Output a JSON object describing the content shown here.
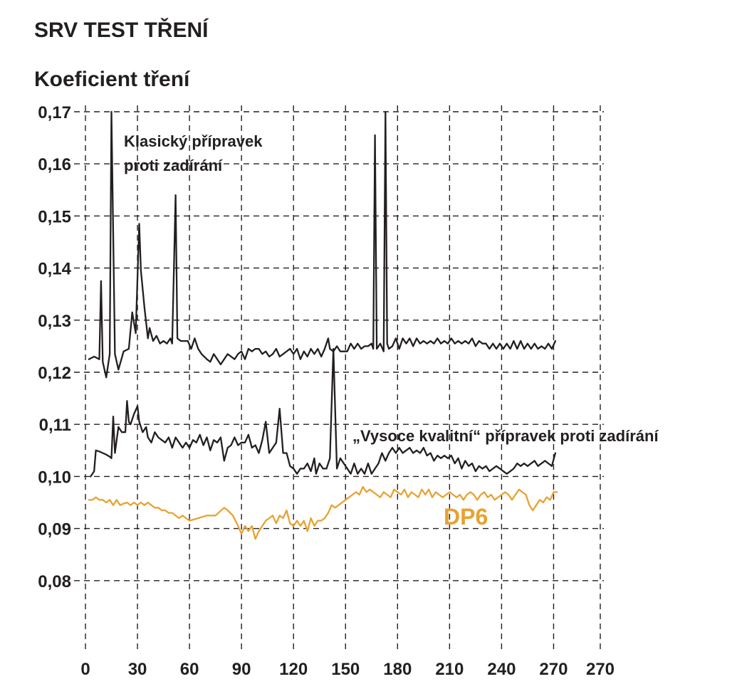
{
  "chart_data": {
    "type": "line",
    "title": "SRV TEST TŘENÍ",
    "ylabel": "Koeficient tření",
    "xlabel": "",
    "xlim": [
      0,
      272
    ],
    "ylim": [
      0.07,
      0.17
    ],
    "x_ticks": [
      "0",
      "30",
      "60",
      "90",
      "120",
      "150",
      "180",
      "210",
      "240",
      "270",
      "270"
    ],
    "y_ticks": [
      "0,17",
      "0,16",
      "0,15",
      "0,14",
      "0,13",
      "0,12",
      "0,11",
      "0,10",
      "0,09",
      "0,08"
    ],
    "grid": true,
    "colors": {
      "classic": "#231f20",
      "high_quality": "#231f20",
      "dp6": "#e8a231"
    },
    "annotations": {
      "classic": [
        "Klasický přípravek",
        "proti zadírání"
      ],
      "high_quality": "„Vysoce kvalitní“ přípravek proti zadírání",
      "dp6": "DP6"
    },
    "series": [
      {
        "x": [
          2,
          5,
          8,
          9,
          10,
          12,
          14,
          15,
          17,
          19,
          22,
          25,
          27,
          29,
          31,
          32,
          34,
          36,
          37,
          39,
          41,
          43,
          45,
          47,
          49,
          50,
          52,
          53,
          55,
          57,
          59,
          61,
          63,
          65,
          67,
          70,
          72,
          74,
          76,
          78,
          80,
          82,
          84,
          86,
          88,
          90,
          92,
          94,
          96,
          98,
          100,
          102,
          104,
          106,
          108,
          110,
          112,
          114,
          116,
          118,
          120,
          122,
          124,
          126,
          128,
          130,
          132,
          134,
          136,
          138,
          140,
          141,
          143,
          145,
          147,
          149,
          151,
          153,
          155,
          157,
          159,
          161,
          163,
          165,
          166,
          167,
          168,
          170,
          172,
          173,
          174,
          175,
          177,
          179,
          181,
          183,
          185,
          187,
          189,
          191,
          193,
          195,
          197,
          199,
          201,
          203,
          205,
          207,
          209,
          211,
          213,
          215,
          217,
          219,
          221,
          223,
          225,
          227,
          229,
          231,
          233,
          235,
          237,
          239,
          241,
          243,
          245,
          247,
          249,
          251,
          253,
          255,
          257,
          259,
          261,
          263,
          265,
          267,
          269,
          271
        ],
        "y": [
          0.1225,
          0.123,
          0.1225,
          0.1375,
          0.122,
          0.119,
          0.1235,
          0.17,
          0.1235,
          0.1205,
          0.124,
          0.1245,
          0.1315,
          0.1275,
          0.1485,
          0.1395,
          0.1325,
          0.1265,
          0.1285,
          0.126,
          0.127,
          0.1255,
          0.126,
          0.1255,
          0.1265,
          0.1255,
          0.154,
          0.1265,
          0.126,
          0.126,
          0.126,
          0.1245,
          0.1265,
          0.1245,
          0.1235,
          0.1225,
          0.122,
          0.1235,
          0.1225,
          0.1215,
          0.1225,
          0.1235,
          0.123,
          0.1225,
          0.1235,
          0.124,
          0.1225,
          0.1245,
          0.124,
          0.1245,
          0.1245,
          0.1235,
          0.124,
          0.123,
          0.1235,
          0.1245,
          0.123,
          0.1235,
          0.124,
          0.1245,
          0.1235,
          0.1245,
          0.1225,
          0.124,
          0.123,
          0.1245,
          0.1235,
          0.1245,
          0.123,
          0.1245,
          0.1265,
          0.1245,
          0.124,
          0.125,
          0.124,
          0.124,
          0.124,
          0.1255,
          0.1245,
          0.1255,
          0.1245,
          0.125,
          0.125,
          0.1255,
          0.1245,
          0.1655,
          0.1245,
          0.1255,
          0.124,
          0.17,
          0.1255,
          0.1245,
          0.125,
          0.1265,
          0.1245,
          0.1265,
          0.1255,
          0.1265,
          0.125,
          0.1265,
          0.1255,
          0.126,
          0.1255,
          0.126,
          0.1255,
          0.1265,
          0.1255,
          0.126,
          0.1255,
          0.1265,
          0.1255,
          0.126,
          0.1255,
          0.126,
          0.1255,
          0.1265,
          0.125,
          0.126,
          0.1255,
          0.1255,
          0.1245,
          0.1255,
          0.1245,
          0.1255,
          0.1245,
          0.1255,
          0.1245,
          0.126,
          0.1245,
          0.126,
          0.1245,
          0.1255,
          0.1245,
          0.1255,
          0.1245,
          0.125,
          0.1245,
          0.1255,
          0.1245,
          0.126
        ]
      },
      {
        "x": [
          3,
          5,
          6,
          8,
          10,
          12,
          14,
          15,
          16,
          17,
          19,
          21,
          23,
          24,
          25,
          26,
          28,
          30,
          31,
          33,
          35,
          36,
          38,
          40,
          42,
          44,
          46,
          48,
          50,
          52,
          54,
          56,
          58,
          60,
          62,
          64,
          66,
          68,
          70,
          72,
          74,
          76,
          78,
          80,
          82,
          84,
          86,
          88,
          90,
          92,
          94,
          96,
          98,
          100,
          102,
          104,
          106,
          108,
          110,
          112,
          114,
          116,
          118,
          120,
          122,
          124,
          126,
          128,
          130,
          132,
          133,
          135,
          137,
          139,
          141,
          143,
          145,
          147,
          149,
          151,
          153,
          155,
          157,
          159,
          161,
          163,
          165,
          167,
          169,
          171,
          173,
          175,
          177,
          179,
          181,
          183,
          185,
          187,
          189,
          191,
          193,
          195,
          197,
          199,
          201,
          203,
          205,
          207,
          209,
          211,
          213,
          215,
          217,
          219,
          221,
          223,
          225,
          227,
          229,
          231,
          233,
          235,
          237,
          239,
          241,
          243,
          245,
          247,
          249,
          251,
          253,
          255,
          257,
          259,
          261,
          263,
          265,
          267,
          269,
          271
        ],
        "y": [
          0.1,
          0.101,
          0.105,
          0.1048,
          0.1045,
          0.1042,
          0.1038,
          0.1035,
          0.1115,
          0.1045,
          0.1095,
          0.1085,
          0.1085,
          0.1145,
          0.1105,
          0.11,
          0.112,
          0.1135,
          0.1105,
          0.1085,
          0.1095,
          0.1075,
          0.1065,
          0.1085,
          0.1075,
          0.107,
          0.1065,
          0.1075,
          0.1055,
          0.1075,
          0.1065,
          0.1055,
          0.1065,
          0.1055,
          0.107,
          0.1065,
          0.108,
          0.106,
          0.1075,
          0.105,
          0.107,
          0.1065,
          0.1075,
          0.103,
          0.1055,
          0.106,
          0.1075,
          0.106,
          0.1065,
          0.1065,
          0.108,
          0.1055,
          0.106,
          0.1045,
          0.107,
          0.1105,
          0.1045,
          0.1055,
          0.1065,
          0.113,
          0.1045,
          0.1045,
          0.102,
          0.1015,
          0.1005,
          0.1015,
          0.1015,
          0.1025,
          0.101,
          0.1035,
          0.1005,
          0.1025,
          0.1015,
          0.1015,
          0.1035,
          0.1245,
          0.1015,
          0.1035,
          0.1025,
          0.1015,
          0.1005,
          0.1025,
          0.1005,
          0.1015,
          0.1005,
          0.1025,
          0.1005,
          0.1015,
          0.1025,
          0.1045,
          0.103,
          0.1045,
          0.1055,
          0.1045,
          0.1055,
          0.1045,
          0.105,
          0.1055,
          0.1045,
          0.105,
          0.1045,
          0.1055,
          0.104,
          0.1045,
          0.103,
          0.104,
          0.1035,
          0.104,
          0.1035,
          0.104,
          0.1025,
          0.1035,
          0.1015,
          0.103,
          0.102,
          0.1025,
          0.101,
          0.102,
          0.1015,
          0.102,
          0.101,
          0.1015,
          0.102,
          0.1015,
          0.101,
          0.1005,
          0.101,
          0.1015,
          0.1025,
          0.102,
          0.1025,
          0.102,
          0.1025,
          0.103,
          0.102,
          0.1025,
          0.103,
          0.1025,
          0.102,
          0.1045
        ]
      },
      {
        "x": [
          2,
          4,
          6,
          8,
          10,
          12,
          14,
          16,
          18,
          20,
          22,
          24,
          26,
          28,
          30,
          32,
          34,
          36,
          38,
          40,
          42,
          44,
          46,
          48,
          50,
          52,
          54,
          56,
          58,
          60,
          65,
          70,
          75,
          80,
          82,
          85,
          88,
          90,
          92,
          94,
          96,
          98,
          100,
          102,
          104,
          106,
          108,
          110,
          112,
          114,
          116,
          118,
          120,
          122,
          124,
          126,
          128,
          130,
          132,
          134,
          136,
          138,
          140,
          142,
          144,
          146,
          148,
          150,
          152,
          154,
          156,
          158,
          160,
          162,
          164,
          166,
          168,
          170,
          172,
          174,
          176,
          178,
          180,
          182,
          184,
          186,
          188,
          190,
          192,
          194,
          196,
          198,
          200,
          202,
          204,
          206,
          208,
          210,
          212,
          214,
          216,
          218,
          220,
          222,
          224,
          226,
          228,
          230,
          232,
          234,
          236,
          238,
          240,
          242,
          244,
          246,
          248,
          250,
          252,
          254,
          256,
          258,
          260,
          262,
          264,
          266,
          268,
          270,
          272
        ],
        "y": [
          0.0955,
          0.0955,
          0.096,
          0.0955,
          0.0955,
          0.095,
          0.0955,
          0.0945,
          0.0955,
          0.0945,
          0.0948,
          0.095,
          0.0945,
          0.095,
          0.0945,
          0.095,
          0.0945,
          0.095,
          0.0945,
          0.094,
          0.094,
          0.0935,
          0.0935,
          0.093,
          0.093,
          0.0925,
          0.092,
          0.0925,
          0.092,
          0.0915,
          0.092,
          0.0925,
          0.0925,
          0.094,
          0.0935,
          0.0925,
          0.0905,
          0.089,
          0.0905,
          0.0895,
          0.0905,
          0.088,
          0.0895,
          0.0905,
          0.0915,
          0.092,
          0.0925,
          0.091,
          0.0925,
          0.092,
          0.0935,
          0.091,
          0.0905,
          0.0915,
          0.0905,
          0.0915,
          0.0895,
          0.092,
          0.0905,
          0.0915,
          0.0915,
          0.092,
          0.093,
          0.0945,
          0.094,
          0.0945,
          0.095,
          0.0955,
          0.096,
          0.0965,
          0.097,
          0.0965,
          0.098,
          0.097,
          0.0975,
          0.097,
          0.0965,
          0.096,
          0.097,
          0.0965,
          0.096,
          0.0975,
          0.097,
          0.0965,
          0.0975,
          0.096,
          0.097,
          0.0965,
          0.096,
          0.0975,
          0.0965,
          0.0975,
          0.096,
          0.097,
          0.0965,
          0.096,
          0.0965,
          0.097,
          0.0965,
          0.096,
          0.0965,
          0.0955,
          0.0965,
          0.097,
          0.0965,
          0.0955,
          0.0965,
          0.097,
          0.096,
          0.0965,
          0.0955,
          0.096,
          0.0965,
          0.097,
          0.0965,
          0.0955,
          0.0965,
          0.0975,
          0.097,
          0.0965,
          0.0945,
          0.0935,
          0.0945,
          0.0955,
          0.095,
          0.096,
          0.0955,
          0.097,
          0.097
        ]
      }
    ]
  }
}
